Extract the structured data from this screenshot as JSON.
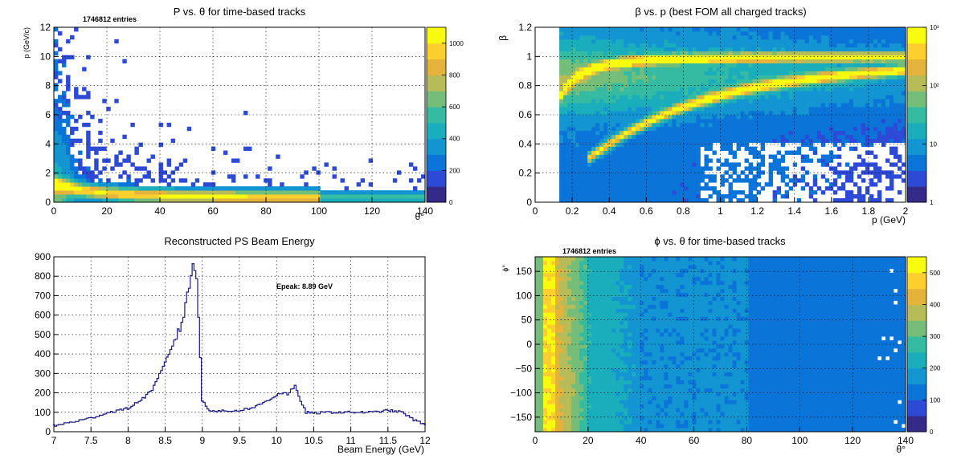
{
  "colors": {
    "palette": [
      "#352a87",
      "#2c4ad6",
      "#0b74d9",
      "#1395d2",
      "#1aaebd",
      "#35bba1",
      "#74be7a",
      "#b7bc58",
      "#e5b33b",
      "#fcce2e",
      "#f9fb0e"
    ],
    "line": "#1a1a80",
    "white": "#ffffff"
  },
  "chart_data": [
    {
      "id": "p_vs_theta",
      "type": "heatmap",
      "title": "P vs. θ for time-based tracks",
      "annotation": "1746812 entries",
      "xlabel": "θ°",
      "ylabel": "p (GeV/c)",
      "xlim": [
        0,
        140
      ],
      "ylim": [
        0,
        12
      ],
      "xticks": [
        "0",
        "20",
        "40",
        "60",
        "80",
        "100",
        "120",
        "140"
      ],
      "yticks": [
        "0",
        "2",
        "4",
        "6",
        "8",
        "10",
        "12"
      ],
      "zlim": [
        0,
        1100
      ],
      "zscale": "linear",
      "colorbar_ticks": [
        "0",
        "200",
        "400",
        "600",
        "800",
        "1000"
      ],
      "grid": true
    },
    {
      "id": "beta_vs_p",
      "type": "heatmap",
      "title": "β vs. p (best FOM all charged tracks)",
      "xlabel": "p (GeV)",
      "ylabel": "β",
      "xlim": [
        0,
        2
      ],
      "ylim": [
        0,
        1.2
      ],
      "xticks": [
        "0",
        "0.2",
        "0.4",
        "0.6",
        "0.8",
        "1",
        "1.2",
        "1.4",
        "1.6",
        "1.8",
        "2"
      ],
      "yticks": [
        "0",
        "0.2",
        "0.4",
        "0.6",
        "0.8",
        "1",
        "1.2"
      ],
      "zlim": [
        1,
        1000
      ],
      "zscale": "log",
      "colorbar_ticks": [
        "1",
        "10",
        "10²",
        "10³"
      ],
      "grid": true
    },
    {
      "id": "beam_energy",
      "type": "line",
      "title": "Reconstructed PS Beam Energy",
      "annotation": "Epeak: 8.89 GeV",
      "xlabel": "Beam Energy (GeV)",
      "ylabel": "",
      "xlim": [
        7,
        12
      ],
      "ylim": [
        0,
        900
      ],
      "xticks": [
        "7",
        "7.5",
        "8",
        "8.5",
        "9",
        "9.5",
        "10",
        "10.5",
        "11",
        "11.5",
        "12"
      ],
      "yticks": [
        "0",
        "100",
        "200",
        "300",
        "400",
        "500",
        "600",
        "700",
        "800",
        "900"
      ],
      "grid": true,
      "series": [
        {
          "x": [
            7.0,
            7.25,
            7.5,
            7.75,
            8.0,
            8.2,
            8.35,
            8.5,
            8.6,
            8.7,
            8.75,
            8.8,
            8.85,
            8.89,
            8.93,
            8.97,
            9.0,
            9.1,
            9.3,
            9.5,
            9.7,
            9.9,
            10.05,
            10.15,
            10.25,
            10.3,
            10.4,
            10.5,
            10.7,
            10.9,
            11.1,
            11.3,
            11.5,
            11.7,
            11.85,
            12.0
          ],
          "values": [
            30,
            50,
            70,
            100,
            120,
            170,
            230,
            350,
            450,
            530,
            600,
            720,
            800,
            860,
            780,
            420,
            160,
            110,
            105,
            110,
            125,
            165,
            200,
            195,
            230,
            180,
            100,
            95,
            100,
            100,
            100,
            100,
            110,
            100,
            60,
            40
          ]
        }
      ]
    },
    {
      "id": "phi_vs_theta",
      "type": "heatmap",
      "title": "ϕ vs. θ for time-based tracks",
      "annotation": "1746812 entries",
      "xlabel": "θ°",
      "ylabel": "ϕ°",
      "xlim": [
        0,
        140
      ],
      "ylim": [
        -180,
        180
      ],
      "xticks": [
        "0",
        "20",
        "40",
        "60",
        "80",
        "100",
        "120",
        "140"
      ],
      "yticks": [
        "−150",
        "−100",
        "−50",
        "0",
        "50",
        "100",
        "150"
      ],
      "zlim": [
        0,
        550
      ],
      "zscale": "linear",
      "colorbar_ticks": [
        "0",
        "100",
        "200",
        "300",
        "400",
        "500"
      ],
      "grid": true
    }
  ]
}
